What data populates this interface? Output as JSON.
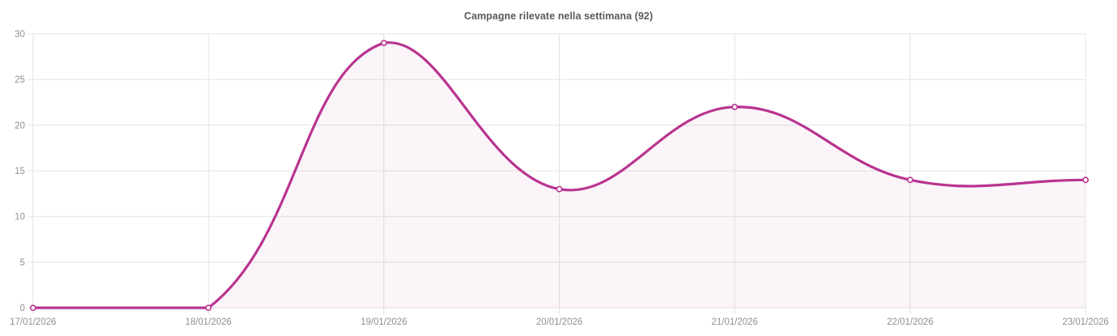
{
  "chart_data": {
    "type": "line",
    "title": "Campagne rilevate nella settimana (92)",
    "categories": [
      "17/01/2026",
      "18/01/2026",
      "19/01/2026",
      "20/01/2026",
      "21/01/2026",
      "22/01/2026",
      "23/01/2026"
    ],
    "values": [
      0,
      0,
      29,
      13,
      22,
      14,
      14
    ],
    "total": 92,
    "ylim": [
      0,
      30
    ],
    "yticks": [
      0,
      5,
      10,
      15,
      20,
      25,
      30
    ],
    "grid": true,
    "legend": "none",
    "line_style": "smooth",
    "marker": "open-circle",
    "colors": {
      "line": "#b93390",
      "area_fill": "rgba(185, 51, 144, 0.05)",
      "marker_fill": "#ffffff",
      "grid": "#e3e3e3",
      "tick_label": "#8f8f8f",
      "title": "#59595b",
      "background": "#ffffff"
    }
  }
}
